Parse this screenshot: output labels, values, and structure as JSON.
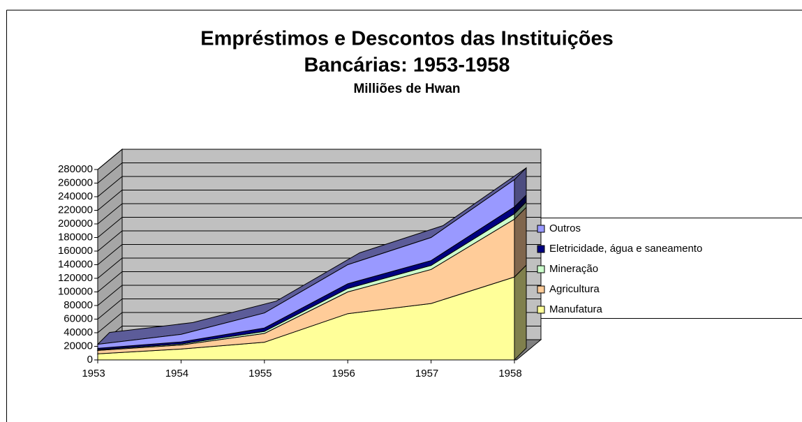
{
  "chart_data": {
    "type": "area3d",
    "title": [
      "Empréstimos e Descontos das Instituições",
      "Bancárias: 1953-1958"
    ],
    "subtitle": "Milliões de Hwan",
    "categories": [
      "1953",
      "1954",
      "1955",
      "1956",
      "1957",
      "1958"
    ],
    "series": [
      {
        "name": "Manufatura",
        "color": "#ffff99",
        "values": [
          9000,
          16000,
          26000,
          68000,
          83000,
          122000
        ]
      },
      {
        "name": "Agricultura",
        "color": "#ffcc99",
        "values": [
          5000,
          6000,
          13000,
          32000,
          50000,
          85000
        ]
      },
      {
        "name": "Mineração",
        "color": "#ccffcc",
        "values": [
          1000,
          1500,
          3000,
          5000,
          6000,
          8000
        ]
      },
      {
        "name": "Eletricidade, água e saneamento",
        "color": "#000080",
        "values": [
          2000,
          3000,
          5000,
          7000,
          7000,
          10000
        ]
      },
      {
        "name": "Outros",
        "color": "#9999ff",
        "values": [
          6000,
          11000,
          22000,
          28000,
          34000,
          40000
        ]
      }
    ],
    "ylim": [
      0,
      280000
    ],
    "yticks": [
      0,
      20000,
      40000,
      60000,
      80000,
      100000,
      120000,
      140000,
      160000,
      180000,
      200000,
      220000,
      240000,
      260000,
      280000
    ],
    "grid": true,
    "stacked": true,
    "legend": "right"
  }
}
